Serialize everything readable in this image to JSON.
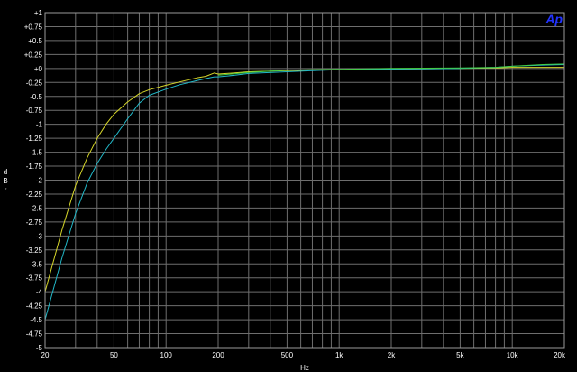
{
  "chart_data": {
    "type": "line",
    "xscale": "log",
    "xlim": [
      20,
      20000
    ],
    "ylim": [
      -5,
      1
    ],
    "grid": true,
    "xlabel": "Hz",
    "ylabel": [
      "d",
      "B",
      "r"
    ],
    "logo": "Ap",
    "y_ticks": [
      "+1",
      "+0.75",
      "+0.5",
      "+0.25",
      "+0",
      "-0.25",
      "-0.5",
      "-0.75",
      "-1",
      "-1.25",
      "-1.5",
      "-1.75",
      "-2",
      "-2.25",
      "-2.5",
      "-2.75",
      "-3",
      "-3.25",
      "-3.5",
      "-3.75",
      "-4",
      "-4.25",
      "-4.5",
      "-4.75",
      "-5"
    ],
    "y_tick_values": [
      1,
      0.75,
      0.5,
      0.25,
      0,
      -0.25,
      -0.5,
      -0.75,
      -1,
      -1.25,
      -1.5,
      -1.75,
      -2,
      -2.25,
      -2.5,
      -2.75,
      -3,
      -3.25,
      -3.5,
      -3.75,
      -4,
      -4.25,
      -4.5,
      -4.75,
      -5
    ],
    "x_ticks": [
      "20",
      "50",
      "100",
      "200",
      "500",
      "1k",
      "2k",
      "5k",
      "10k",
      "20k"
    ],
    "x_tick_values": [
      20,
      50,
      100,
      200,
      500,
      1000,
      2000,
      5000,
      10000,
      20000
    ],
    "series": [
      {
        "color": "#d6d62a",
        "points": [
          [
            20,
            -4.0
          ],
          [
            25,
            -2.9
          ],
          [
            30,
            -2.1
          ],
          [
            35,
            -1.6
          ],
          [
            40,
            -1.25
          ],
          [
            45,
            -1.0
          ],
          [
            50,
            -0.82
          ],
          [
            60,
            -0.6
          ],
          [
            70,
            -0.45
          ],
          [
            80,
            -0.38
          ],
          [
            100,
            -0.3
          ],
          [
            120,
            -0.24
          ],
          [
            150,
            -0.17
          ],
          [
            170,
            -0.14
          ],
          [
            190,
            -0.08
          ],
          [
            200,
            -0.1
          ],
          [
            250,
            -0.08
          ],
          [
            300,
            -0.06
          ],
          [
            500,
            -0.04
          ],
          [
            700,
            -0.03
          ],
          [
            1000,
            -0.02
          ],
          [
            2000,
            -0.01
          ],
          [
            5000,
            0.0
          ],
          [
            8000,
            0.01
          ],
          [
            10000,
            0.02
          ],
          [
            15000,
            0.02
          ],
          [
            20000,
            0.02
          ]
        ]
      },
      {
        "color": "#22b8c8",
        "points": [
          [
            20,
            -4.5
          ],
          [
            25,
            -3.4
          ],
          [
            30,
            -2.6
          ],
          [
            35,
            -2.05
          ],
          [
            40,
            -1.7
          ],
          [
            45,
            -1.45
          ],
          [
            50,
            -1.25
          ],
          [
            60,
            -0.9
          ],
          [
            70,
            -0.62
          ],
          [
            80,
            -0.48
          ],
          [
            100,
            -0.37
          ],
          [
            120,
            -0.29
          ],
          [
            150,
            -0.22
          ],
          [
            170,
            -0.18
          ],
          [
            190,
            -0.15
          ],
          [
            200,
            -0.15
          ],
          [
            250,
            -0.12
          ],
          [
            300,
            -0.09
          ],
          [
            500,
            -0.06
          ],
          [
            700,
            -0.04
          ],
          [
            1000,
            -0.02
          ],
          [
            2000,
            -0.01
          ],
          [
            5000,
            0.0
          ],
          [
            8000,
            0.02
          ],
          [
            10000,
            0.04
          ],
          [
            15000,
            0.06
          ],
          [
            20000,
            0.07
          ]
        ]
      },
      {
        "color": "#44cc44",
        "points": [
          [
            200,
            -0.12
          ],
          [
            300,
            -0.07
          ],
          [
            500,
            -0.03
          ],
          [
            700,
            -0.02
          ],
          [
            1000,
            -0.015
          ],
          [
            2000,
            0.0
          ],
          [
            5000,
            0.01
          ],
          [
            8000,
            0.02
          ],
          [
            10000,
            0.04
          ],
          [
            15000,
            0.07
          ],
          [
            20000,
            0.08
          ]
        ]
      }
    ]
  }
}
